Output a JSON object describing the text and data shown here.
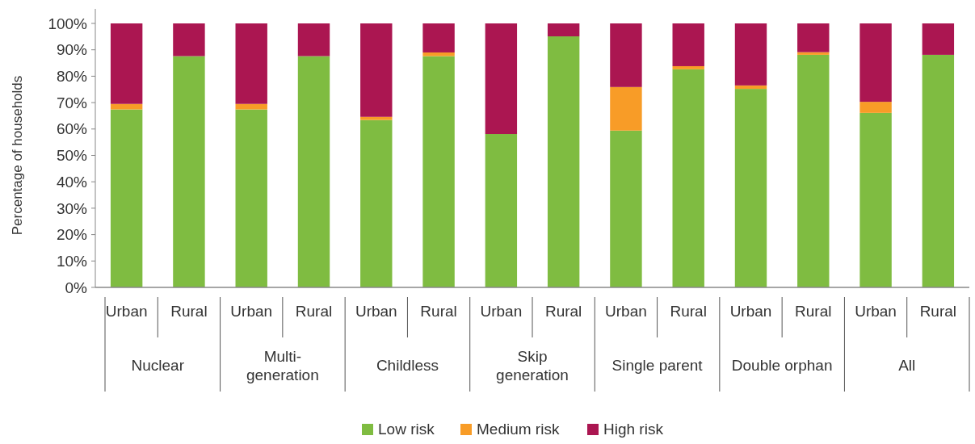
{
  "chart_data": {
    "type": "bar",
    "stacked": true,
    "ylabel": "Percentage of households",
    "categories": [
      "Urban",
      "Rural",
      "Urban",
      "Rural",
      "Urban",
      "Rural",
      "Urban",
      "Rural",
      "Urban",
      "Rural",
      "Urban",
      "Rural",
      "Urban",
      "Rural"
    ],
    "annotations": [
      "Nuclear",
      "Multi-\ngeneration",
      "Childless",
      "Skip\ngeneration",
      "Single parent",
      "Double orphan",
      "All"
    ],
    "series": [
      {
        "name": "Low risk",
        "color": "#7fbc41",
        "values": [
          67.4,
          87.6,
          67.4,
          87.6,
          63.4,
          87.6,
          58.1,
          95.1,
          59.4,
          82.6,
          75.2,
          88.1,
          66.1,
          88.1
        ]
      },
      {
        "name": "Medium risk",
        "color": "#f89c27",
        "values": [
          2.1,
          0,
          2.1,
          0,
          1.2,
          1.4,
          0,
          0,
          16.5,
          1.2,
          1.3,
          1.0,
          4.2,
          0
        ]
      },
      {
        "name": "High risk",
        "color": "#ab1651",
        "values": [
          30.5,
          12.4,
          30.5,
          12.4,
          35.4,
          11.0,
          41.9,
          4.9,
          24.1,
          16.2,
          23.5,
          10.9,
          29.7,
          11.9
        ]
      }
    ],
    "ylim": [
      0,
      100
    ],
    "yticks": [
      {
        "value": 0,
        "label": "0%"
      },
      {
        "value": 10,
        "label": "10%"
      },
      {
        "value": 20,
        "label": "20%"
      },
      {
        "value": 30,
        "label": "30%"
      },
      {
        "value": 40,
        "label": "40%"
      },
      {
        "value": 50,
        "label": "50%"
      },
      {
        "value": 60,
        "label": "60%"
      },
      {
        "value": 70,
        "label": "70%"
      },
      {
        "value": 80,
        "label": "80%"
      },
      {
        "value": 90,
        "label": "90%"
      },
      {
        "value": 100,
        "label": "100%"
      }
    ],
    "grid": false,
    "legend": "bottom"
  }
}
